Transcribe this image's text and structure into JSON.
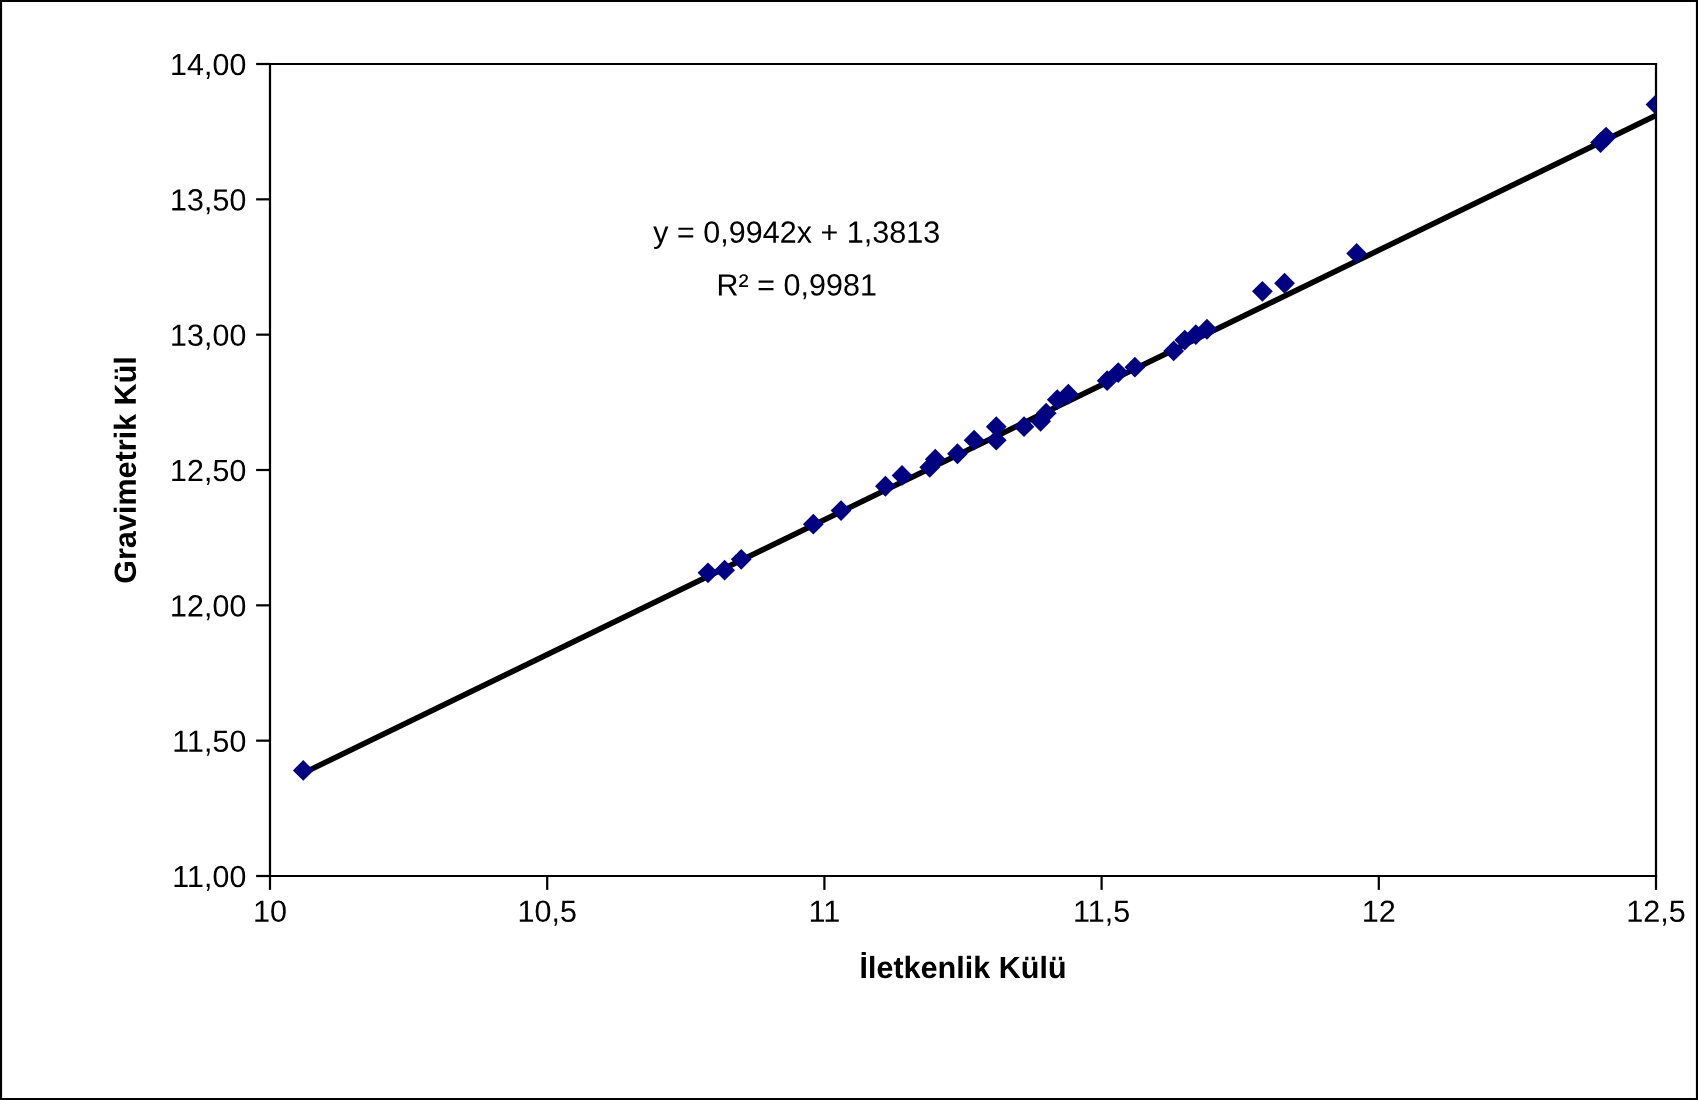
{
  "chart_data": {
    "type": "scatter",
    "xlabel": "İletkenlik Külü",
    "ylabel": "Gravimetrik Kül",
    "annotations": [
      "y = 0,9942x + 1,3813",
      "R² = 0,9981"
    ],
    "grid": false,
    "legend": false,
    "xlim": [
      10,
      12.5
    ],
    "ylim": [
      11,
      14
    ],
    "xticks": [
      10,
      {
        "value": 10.5,
        "label": "10,5"
      },
      11,
      {
        "value": 11.5,
        "label": "11,5"
      },
      12,
      {
        "value": 12.5,
        "label": "12,5"
      }
    ],
    "yticks": [
      {
        "value": 11,
        "label": "11,00"
      },
      {
        "value": 11.5,
        "label": "11,50"
      },
      {
        "value": 12,
        "label": "12,00"
      },
      {
        "value": 12.5,
        "label": "12,50"
      },
      {
        "value": 13,
        "label": "13,00"
      },
      {
        "value": 13.5,
        "label": "13,50"
      },
      {
        "value": 14,
        "label": "14,00"
      }
    ],
    "series": [
      {
        "marker": "diamond",
        "color": "#000080",
        "x": [
          10.06,
          10.79,
          10.82,
          10.85,
          10.98,
          11.03,
          11.11,
          11.14,
          11.19,
          11.2,
          11.24,
          11.27,
          11.31,
          11.31,
          11.36,
          11.39,
          11.4,
          11.42,
          11.44,
          11.51,
          11.53,
          11.56,
          11.63,
          11.65,
          11.67,
          11.69,
          11.79,
          11.83,
          11.96,
          12.4,
          12.41,
          12.5
        ],
        "values": [
          11.39,
          12.12,
          12.13,
          12.17,
          12.3,
          12.35,
          12.44,
          12.48,
          12.51,
          12.54,
          12.56,
          12.61,
          12.66,
          12.61,
          12.66,
          12.68,
          12.71,
          12.76,
          12.78,
          12.83,
          12.86,
          12.88,
          12.94,
          12.98,
          13.0,
          13.02,
          13.16,
          13.19,
          13.3,
          13.71,
          13.73,
          13.85
        ]
      },
      {
        "type": "line",
        "color": "#000000",
        "x": [
          10.06,
          12.5
        ],
        "values": [
          11.38,
          13.81
        ]
      }
    ]
  }
}
